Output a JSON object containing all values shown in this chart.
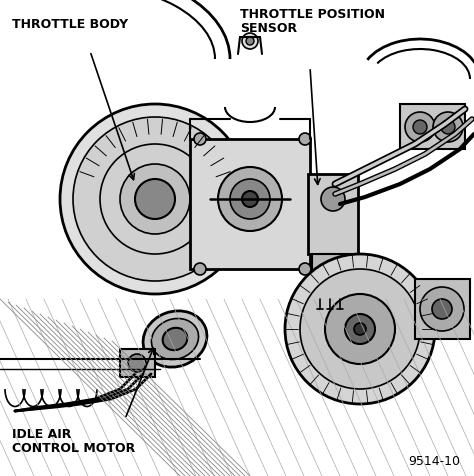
{
  "background_color": "#ffffff",
  "border_color": "#000000",
  "fig_width": 4.74,
  "fig_height": 4.77,
  "dpi": 100,
  "label_throttle_body": "THROTTLE BODY",
  "label_tps_line1": "THROTTLE POSITION",
  "label_tps_line2": "SENSOR",
  "label_iac_line1": "IDLE AIR",
  "label_iac_line2": "CONTROL MOTOR",
  "label_code": "9514-10",
  "label_fontsize": 9,
  "code_fontsize": 9
}
